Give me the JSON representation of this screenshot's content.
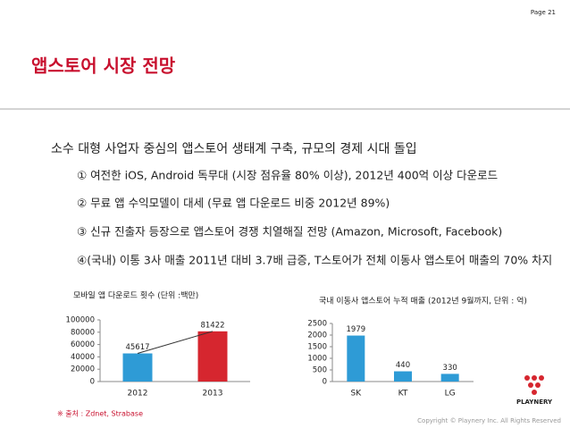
{
  "page_label": "Page 21",
  "title": "앱스토어 시장 전망",
  "bullet": "소수 대형 사업자 중심의 앱스토어 생태계 구축, 규모의 경제 시대 돌입",
  "items": [
    "① 여전한 iOS, Android 독무대 (시장 점유율 80% 이상), 2012년 400억 이상 다운로드",
    "② 무료 앱 수익모델이 대세 (무료 앱 다운로드 비중 2012년 89%)",
    "③ 신규 진출자 등장으로 앱스토어 경쟁 치열해질 전망 (Amazon, Microsoft, Facebook)",
    "④(국내) 이통 3사 매출  2011년 대비 3.7배 급증, T스토어가 전체 이동사 앱스토어 매출의 70% 차지"
  ],
  "chart_data": [
    {
      "type": "bar",
      "title": "모바일 앱 다운로드 횟수 (단위 :백만)",
      "categories": [
        "2012",
        "2013"
      ],
      "values": [
        45617,
        81422
      ],
      "colors": [
        "#2e9bd6",
        "#d6262f"
      ],
      "ylim": [
        0,
        100000
      ],
      "yticks": [
        0,
        20000,
        40000,
        60000,
        80000,
        100000
      ],
      "trend_line": true
    },
    {
      "type": "bar",
      "title": "국내 이동사 앱스토어 누적 매출 (2012년 9월까지, 단위 : 억)",
      "categories": [
        "SK",
        "KT",
        "LG"
      ],
      "values": [
        1979,
        440,
        330
      ],
      "color": "#2e9bd6",
      "ylim": [
        0,
        2500
      ],
      "yticks": [
        0,
        500,
        1000,
        1500,
        2000,
        2500
      ]
    }
  ],
  "source": "※ 출처 : Zdnet, Strabase",
  "logo": "PLAYNERY",
  "copyright": "Copyright © Playnery Inc. All Rights Reserved"
}
